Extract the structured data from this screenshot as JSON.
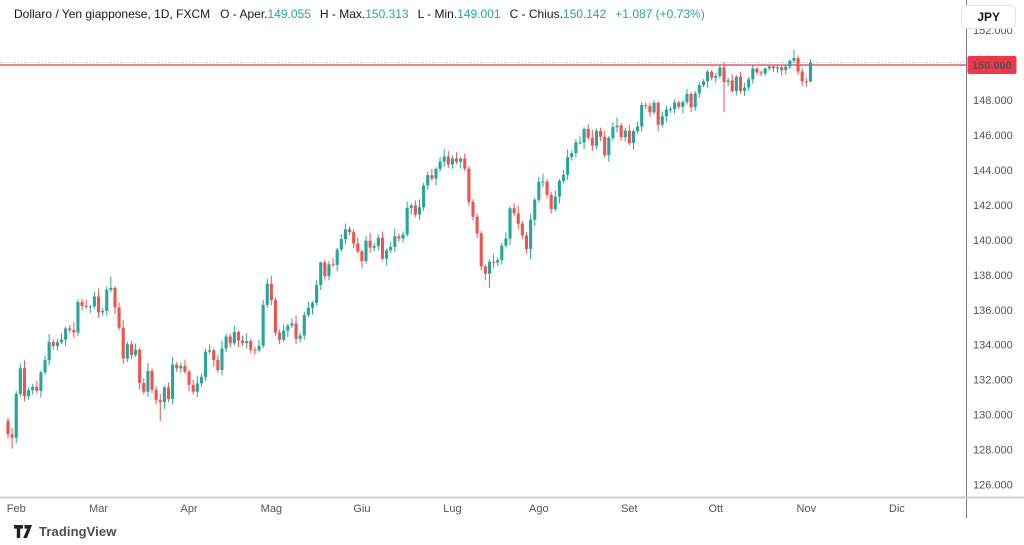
{
  "header": {
    "symbol_title": "Dollaro / Yen giapponese, 1D, FXCM",
    "ohlc": [
      {
        "label": "O - Aper.",
        "value": "149.055"
      },
      {
        "label": "H - Max.",
        "value": "150.313"
      },
      {
        "label": "L - Min.",
        "value": "149.001"
      },
      {
        "label": "C - Chius.",
        "value": "150.142"
      }
    ],
    "change": "+1.087 (+0.73%)"
  },
  "toolbar": {
    "currency_label": "JPY"
  },
  "footer": {
    "brand": "TradingView"
  },
  "chart_data": {
    "type": "candlestick",
    "title": "Dollaro / Yen giapponese, 1D, FXCM",
    "symbol": "Dollaro / Yen giapponese",
    "interval": "1D",
    "exchange": "FXCM",
    "grid": "off",
    "y_axis": {
      "min": 126,
      "max": 152,
      "tick_step": 2,
      "tick_suffix": ".000"
    },
    "x_axis_labels": [
      {
        "label": "Feb",
        "index": 2
      },
      {
        "label": "Mar",
        "index": 22
      },
      {
        "label": "Apr",
        "index": 44
      },
      {
        "label": "Mag",
        "index": 64
      },
      {
        "label": "Giu",
        "index": 86
      },
      {
        "label": "Lug",
        "index": 108
      },
      {
        "label": "Ago",
        "index": 129
      },
      {
        "label": "Set",
        "index": 151
      },
      {
        "label": "Ott",
        "index": 172
      },
      {
        "label": "Nov",
        "index": 194
      },
      {
        "label": "Dic",
        "index": 216
      }
    ],
    "price_line": {
      "value": 150.0,
      "label": "150.000",
      "color": "#f23645"
    },
    "last_price": {
      "value": 150.142
    },
    "colors": {
      "up": "#26a69a",
      "down": "#ef5350",
      "axis_text": "#50535e",
      "axis_line": "#787b86",
      "grid_border": "#c9ccd4"
    },
    "candles": [
      [
        129.65,
        129.83,
        128.63,
        128.88
      ],
      [
        128.88,
        129.23,
        128.06,
        128.68
      ],
      [
        128.68,
        131.35,
        128.35,
        131.19
      ],
      [
        131.19,
        132.93,
        131.04,
        132.65
      ],
      [
        132.65,
        133.1,
        130.76,
        131.06
      ],
      [
        131.06,
        131.55,
        130.86,
        131.4
      ],
      [
        131.4,
        131.77,
        131.15,
        131.59
      ],
      [
        131.59,
        131.94,
        131.24,
        131.36
      ],
      [
        131.36,
        132.52,
        130.98,
        132.42
      ],
      [
        132.42,
        133.4,
        132.27,
        133.12
      ],
      [
        133.12,
        134.61,
        132.82,
        134.16
      ],
      [
        134.16,
        134.31,
        133.73,
        133.93
      ],
      [
        133.93,
        134.33,
        133.68,
        134.15
      ],
      [
        134.15,
        134.64,
        134.03,
        134.29
      ],
      [
        134.29,
        135.03,
        133.91,
        134.93
      ],
      [
        134.93,
        135.12,
        134.69,
        134.84
      ],
      [
        134.84,
        135.29,
        134.4,
        134.7
      ],
      [
        134.7,
        136.59,
        134.5,
        136.44
      ],
      [
        136.44,
        136.62,
        135.97,
        136.22
      ],
      [
        136.22,
        136.57,
        136.05,
        136.17
      ],
      [
        136.17,
        136.29,
        135.81,
        136.19
      ],
      [
        136.19,
        137.04,
        136.04,
        136.76
      ],
      [
        136.76,
        137.21,
        135.55,
        135.85
      ],
      [
        135.85,
        136.08,
        135.65,
        135.93
      ],
      [
        135.93,
        137.32,
        135.68,
        137.14
      ],
      [
        137.14,
        137.91,
        137.02,
        137.25
      ],
      [
        137.25,
        137.35,
        135.75,
        136.13
      ],
      [
        136.13,
        136.41,
        134.82,
        134.97
      ],
      [
        134.97,
        135.42,
        132.91,
        133.21
      ],
      [
        133.21,
        134.18,
        133.01,
        134.03
      ],
      [
        134.03,
        134.21,
        133.17,
        133.42
      ],
      [
        133.42,
        134.07,
        133.3,
        133.72
      ],
      [
        133.72,
        133.82,
        131.43,
        131.81
      ],
      [
        131.81,
        132.09,
        131.16,
        131.31
      ],
      [
        131.31,
        132.95,
        131.01,
        132.5
      ],
      [
        132.5,
        132.65,
        131.23,
        131.43
      ],
      [
        131.43,
        131.61,
        130.58,
        130.83
      ],
      [
        130.83,
        131.18,
        129.64,
        130.71
      ],
      [
        130.71,
        131.66,
        130.33,
        131.56
      ],
      [
        131.56,
        131.84,
        130.74,
        130.89
      ],
      [
        130.89,
        133.31,
        130.59,
        132.86
      ],
      [
        132.86,
        133.01,
        132.45,
        132.65
      ],
      [
        132.65,
        132.97,
        132.4,
        132.79
      ],
      [
        132.79,
        133.14,
        132.34,
        132.46
      ],
      [
        132.46,
        132.56,
        131.33,
        131.71
      ],
      [
        131.71,
        131.99,
        131.16,
        131.31
      ],
      [
        131.31,
        132.24,
        131.01,
        131.79
      ],
      [
        131.79,
        132.31,
        131.59,
        132.16
      ],
      [
        132.16,
        133.78,
        131.91,
        133.6
      ],
      [
        133.6,
        134.03,
        133.48,
        133.68
      ],
      [
        133.68,
        133.78,
        132.75,
        133.13
      ],
      [
        133.13,
        133.41,
        132.4,
        132.55
      ],
      [
        132.55,
        134.23,
        132.25,
        133.78
      ],
      [
        133.78,
        134.62,
        133.58,
        134.47
      ],
      [
        134.47,
        134.65,
        133.83,
        134.08
      ],
      [
        134.08,
        135.07,
        133.96,
        134.72
      ],
      [
        134.72,
        134.82,
        133.86,
        134.24
      ],
      [
        134.24,
        134.52,
        133.94,
        134.09
      ],
      [
        134.09,
        134.66,
        133.79,
        134.21
      ],
      [
        134.21,
        134.36,
        133.51,
        133.71
      ],
      [
        133.71,
        133.89,
        133.43,
        133.68
      ],
      [
        133.68,
        134.29,
        133.56,
        133.94
      ],
      [
        133.94,
        136.56,
        133.8,
        136.28
      ],
      [
        136.28,
        137.77,
        136.13,
        137.49
      ],
      [
        137.49,
        137.94,
        136.25,
        136.55
      ],
      [
        136.55,
        136.7,
        134.49,
        134.69
      ],
      [
        134.69,
        134.87,
        134.03,
        134.28
      ],
      [
        134.28,
        135.16,
        134.16,
        134.81
      ],
      [
        134.81,
        135.2,
        134.43,
        135.1
      ],
      [
        135.1,
        135.5,
        134.95,
        135.22
      ],
      [
        135.22,
        135.67,
        134.04,
        134.34
      ],
      [
        134.34,
        134.68,
        134.14,
        134.53
      ],
      [
        134.53,
        135.88,
        134.28,
        135.7
      ],
      [
        135.7,
        136.46,
        135.58,
        136.11
      ],
      [
        136.11,
        136.49,
        135.73,
        136.39
      ],
      [
        136.39,
        137.69,
        136.24,
        137.41
      ],
      [
        137.41,
        138.75,
        137.11,
        138.71
      ],
      [
        138.71,
        138.86,
        137.73,
        137.93
      ],
      [
        137.93,
        138.78,
        137.68,
        138.6
      ],
      [
        138.6,
        138.95,
        138.45,
        138.57
      ],
      [
        138.57,
        139.54,
        138.19,
        139.44
      ],
      [
        139.44,
        140.32,
        139.29,
        140.04
      ],
      [
        140.04,
        140.93,
        139.74,
        140.6
      ],
      [
        140.6,
        140.75,
        140.24,
        140.44
      ],
      [
        140.44,
        140.62,
        139.54,
        139.79
      ],
      [
        139.79,
        140.14,
        139.22,
        139.34
      ],
      [
        139.34,
        139.44,
        138.41,
        138.79
      ],
      [
        138.79,
        140.23,
        138.64,
        139.95
      ],
      [
        139.95,
        140.4,
        139.25,
        139.55
      ],
      [
        139.55,
        139.8,
        139.35,
        139.65
      ],
      [
        139.65,
        140.3,
        139.4,
        140.12
      ],
      [
        140.12,
        140.47,
        138.8,
        138.92
      ],
      [
        138.92,
        139.5,
        138.54,
        139.4
      ],
      [
        139.4,
        139.87,
        139.25,
        139.59
      ],
      [
        139.59,
        140.65,
        139.29,
        140.2
      ],
      [
        140.2,
        140.35,
        139.88,
        140.08
      ],
      [
        140.08,
        140.48,
        139.83,
        140.3
      ],
      [
        140.3,
        142.18,
        140.18,
        141.83
      ],
      [
        141.83,
        142.07,
        141.45,
        141.97
      ],
      [
        141.97,
        142.25,
        141.29,
        141.44
      ],
      [
        141.44,
        142.31,
        141.14,
        141.86
      ],
      [
        141.86,
        143.26,
        141.66,
        143.11
      ],
      [
        143.11,
        143.88,
        142.86,
        143.7
      ],
      [
        143.7,
        144.05,
        143.38,
        143.5
      ],
      [
        143.5,
        144.15,
        143.12,
        144.05
      ],
      [
        144.05,
        144.75,
        143.9,
        144.47
      ],
      [
        144.47,
        145.21,
        144.17,
        144.76
      ],
      [
        144.76,
        145.07,
        144.11,
        144.31
      ],
      [
        144.31,
        144.84,
        144.06,
        144.66
      ],
      [
        144.66,
        145.01,
        144.34,
        144.46
      ],
      [
        144.46,
        144.75,
        144.08,
        144.65
      ],
      [
        144.65,
        144.93,
        143.92,
        144.07
      ],
      [
        144.07,
        144.2,
        141.95,
        142.17
      ],
      [
        142.17,
        142.32,
        141.12,
        141.32
      ],
      [
        141.32,
        141.5,
        140.12,
        140.37
      ],
      [
        140.37,
        140.49,
        138.25,
        138.48
      ],
      [
        138.48,
        138.58,
        137.68,
        138.06
      ],
      [
        138.06,
        138.89,
        137.25,
        138.75
      ],
      [
        138.75,
        139.2,
        138.4,
        138.7
      ],
      [
        138.7,
        138.99,
        138.5,
        138.84
      ],
      [
        138.84,
        139.85,
        138.59,
        139.67
      ],
      [
        139.67,
        140.42,
        139.55,
        140.07
      ],
      [
        140.07,
        141.91,
        139.69,
        141.81
      ],
      [
        141.81,
        142.09,
        141.36,
        141.51
      ],
      [
        141.51,
        141.96,
        140.62,
        140.92
      ],
      [
        140.92,
        141.07,
        140.05,
        140.25
      ],
      [
        140.25,
        140.43,
        139.23,
        139.48
      ],
      [
        139.48,
        141.5,
        138.9,
        141.15
      ],
      [
        141.15,
        142.39,
        140.77,
        142.29
      ],
      [
        142.29,
        143.6,
        142.14,
        143.32
      ],
      [
        143.32,
        143.78,
        143.02,
        143.33
      ],
      [
        143.33,
        143.48,
        142.37,
        142.57
      ],
      [
        142.57,
        142.75,
        141.51,
        141.76
      ],
      [
        141.76,
        142.82,
        141.64,
        142.47
      ],
      [
        142.47,
        143.47,
        142.09,
        143.37
      ],
      [
        143.37,
        144.0,
        143.22,
        143.72
      ],
      [
        143.72,
        145.18,
        143.42,
        144.73
      ],
      [
        144.73,
        145.11,
        144.53,
        144.96
      ],
      [
        144.96,
        145.75,
        144.71,
        145.57
      ],
      [
        145.57,
        145.92,
        145.45,
        145.57
      ],
      [
        145.57,
        146.44,
        145.19,
        146.34
      ],
      [
        146.34,
        146.62,
        145.69,
        145.84
      ],
      [
        145.84,
        146.29,
        145.08,
        145.38
      ],
      [
        145.38,
        146.38,
        145.18,
        146.23
      ],
      [
        146.23,
        146.41,
        145.64,
        145.89
      ],
      [
        145.89,
        146.24,
        144.72,
        144.84
      ],
      [
        144.84,
        145.93,
        144.46,
        145.83
      ],
      [
        145.83,
        146.72,
        145.68,
        146.44
      ],
      [
        146.44,
        146.99,
        146.14,
        146.54
      ],
      [
        146.54,
        146.69,
        145.67,
        145.87
      ],
      [
        145.87,
        146.42,
        145.62,
        146.24
      ],
      [
        146.24,
        146.59,
        145.42,
        145.54
      ],
      [
        145.54,
        146.32,
        145.16,
        146.22
      ],
      [
        146.22,
        146.76,
        146.07,
        146.48
      ],
      [
        146.48,
        147.86,
        146.18,
        147.71
      ],
      [
        147.71,
        147.86,
        147.46,
        147.66
      ],
      [
        147.66,
        147.84,
        147.04,
        147.29
      ],
      [
        147.29,
        147.97,
        147.17,
        147.83
      ],
      [
        147.83,
        147.93,
        146.2,
        146.58
      ],
      [
        146.58,
        147.35,
        146.43,
        147.07
      ],
      [
        147.07,
        147.67,
        146.77,
        147.45
      ],
      [
        147.45,
        147.62,
        147.27,
        147.47
      ],
      [
        147.47,
        148.03,
        147.22,
        147.85
      ],
      [
        147.85,
        147.96,
        147.49,
        147.61
      ],
      [
        147.61,
        147.98,
        147.23,
        147.88
      ],
      [
        147.88,
        148.62,
        147.73,
        148.34
      ],
      [
        148.34,
        148.46,
        147.32,
        147.59
      ],
      [
        147.59,
        148.52,
        147.39,
        148.37
      ],
      [
        148.37,
        149.03,
        148.12,
        148.85
      ],
      [
        148.85,
        149.19,
        148.73,
        149.07
      ],
      [
        149.07,
        149.72,
        148.69,
        149.62
      ],
      [
        149.62,
        149.71,
        149.12,
        149.27
      ],
      [
        149.27,
        149.54,
        149.0,
        149.37
      ],
      [
        149.37,
        149.95,
        149.23,
        149.86
      ],
      [
        149.86,
        150.16,
        147.3,
        149.03
      ],
      [
        149.03,
        149.29,
        148.78,
        149.11
      ],
      [
        149.11,
        149.46,
        148.39,
        148.51
      ],
      [
        148.51,
        149.42,
        148.26,
        149.32
      ],
      [
        149.32,
        149.6,
        148.37,
        148.52
      ],
      [
        148.52,
        148.97,
        148.22,
        148.71
      ],
      [
        148.71,
        149.33,
        148.51,
        149.18
      ],
      [
        149.18,
        149.98,
        148.93,
        149.8
      ],
      [
        149.8,
        149.83,
        149.45,
        149.57
      ],
      [
        149.57,
        149.67,
        149.36,
        149.51
      ],
      [
        149.51,
        149.84,
        149.36,
        149.8
      ],
      [
        149.8,
        149.98,
        149.67,
        149.92
      ],
      [
        149.92,
        149.96,
        149.61,
        149.81
      ],
      [
        149.81,
        149.99,
        149.56,
        149.86
      ],
      [
        149.86,
        149.96,
        149.4,
        149.71
      ],
      [
        149.71,
        150.01,
        149.45,
        149.91
      ],
      [
        149.91,
        150.32,
        149.76,
        150.24
      ],
      [
        150.24,
        150.85,
        150.09,
        150.4
      ],
      [
        150.4,
        150.55,
        149.43,
        149.63
      ],
      [
        149.63,
        149.81,
        148.81,
        149.06
      ],
      [
        149.06,
        149.28,
        148.75,
        149.055
      ],
      [
        149.055,
        150.313,
        149.001,
        150.142
      ]
    ]
  }
}
